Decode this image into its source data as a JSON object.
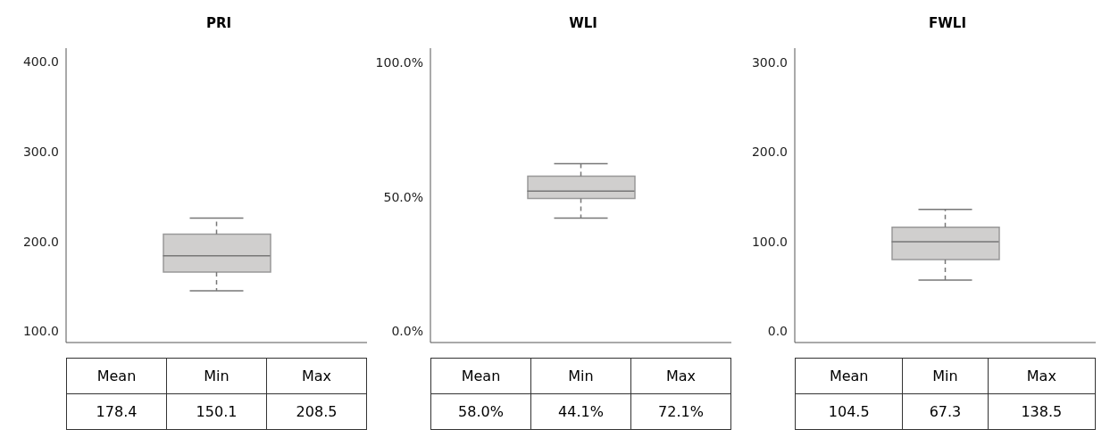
{
  "chart_data": [
    {
      "type": "box",
      "title": "PRI",
      "categories": [
        null
      ],
      "boxes": [
        {
          "low": 145,
          "q1": 166,
          "median": 184,
          "q3": 208,
          "high": 226
        }
      ],
      "color": "#d0cfce",
      "ylim": [
        87.5,
        415
      ],
      "yticks": [
        {
          "value": 100,
          "label": "100.0"
        },
        {
          "value": 200,
          "label": "200.0"
        },
        {
          "value": 300,
          "label": "300.0"
        },
        {
          "value": 400,
          "label": "400.0"
        }
      ],
      "tick_labels": "y",
      "annotations": [
        "Mean",
        "Min",
        "Max",
        "178.4",
        "150.1",
        "208.5"
      ]
    },
    {
      "type": "box",
      "title": "WLI",
      "categories": [
        null
      ],
      "boxes": [
        {
          "low": 42.1,
          "q1": 49.4,
          "median": 52.2,
          "q3": 57.7,
          "high": 62.4
        }
      ],
      "color": "#d0cfce",
      "ylim": [
        -4.2,
        105.4
      ],
      "yticks": [
        {
          "value": 0,
          "label": "0.0%"
        },
        {
          "value": 50,
          "label": "50.0%"
        },
        {
          "value": 100,
          "label": "100.0%"
        }
      ],
      "tick_labels": "y",
      "annotations": [
        "Mean",
        "Min",
        "Max",
        "58.0%",
        "44.1%",
        "72.1%"
      ]
    },
    {
      "type": "box",
      "title": "FWLI",
      "categories": [
        null
      ],
      "boxes": [
        {
          "low": 57,
          "q1": 80,
          "median": 100,
          "q3": 116,
          "high": 136
        }
      ],
      "color": "#d0cfce",
      "ylim": [
        -12.6,
        316
      ],
      "yticks": [
        {
          "value": 0,
          "label": "0.0"
        },
        {
          "value": 100,
          "label": "100.0"
        },
        {
          "value": 200,
          "label": "200.0"
        },
        {
          "value": 300,
          "label": "300.0"
        }
      ],
      "tick_labels": "y",
      "annotations": [
        "Mean",
        "Min",
        "Max",
        "104.5",
        "67.3",
        "138.5"
      ]
    }
  ]
}
